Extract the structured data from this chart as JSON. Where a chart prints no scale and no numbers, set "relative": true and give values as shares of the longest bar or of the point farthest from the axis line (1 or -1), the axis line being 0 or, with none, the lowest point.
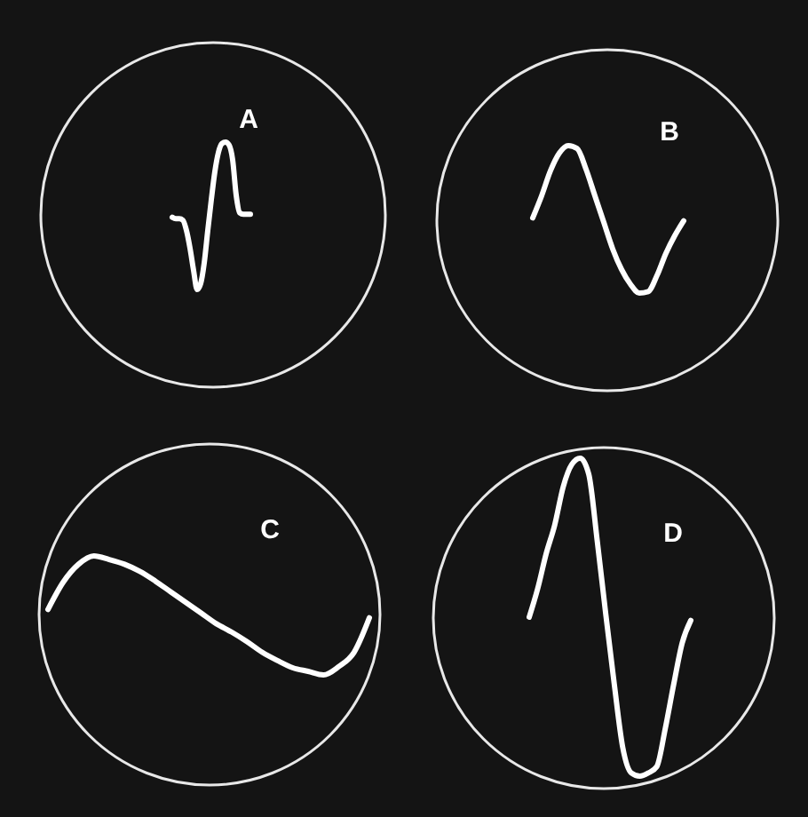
{
  "chart_data": [
    {
      "type": "line",
      "title": "A",
      "relative": true,
      "color": "#ffffff",
      "categories": [
        null,
        null,
        null,
        null,
        null,
        null,
        null,
        null,
        null,
        null,
        null,
        null,
        null,
        null,
        null,
        null,
        null,
        null,
        null,
        null,
        null,
        null,
        null
      ],
      "values": [
        0.49,
        0.48,
        0.48,
        0.47,
        0.4,
        0.28,
        0.13,
        0,
        0.04,
        0.18,
        0.4,
        0.61,
        0.8,
        0.93,
        0.99,
        1,
        0.98,
        0.88,
        0.64,
        0.52,
        0.51,
        0.51,
        0.51
      ]
    },
    {
      "type": "line",
      "title": "B",
      "relative": true,
      "color": "#ffffff",
      "categories": [
        null,
        null,
        null,
        null,
        null,
        null,
        null,
        null,
        null,
        null,
        null,
        null,
        null,
        null,
        null,
        null,
        null,
        null
      ],
      "values": [
        0.51,
        0.66,
        0.83,
        0.95,
        1,
        0.98,
        0.84,
        0.66,
        0.48,
        0.3,
        0.16,
        0.06,
        0,
        0.01,
        0.12,
        0.27,
        0.39,
        0.49
      ]
    },
    {
      "type": "line",
      "title": "C",
      "relative": true,
      "color": "#ffffff",
      "categories": [
        null,
        null,
        null,
        null,
        null,
        null,
        null,
        null,
        null,
        null,
        null,
        null,
        null,
        null,
        null,
        null,
        null,
        null,
        null,
        null,
        null,
        null
      ],
      "values": [
        0.55,
        0.78,
        0.93,
        1,
        0.97,
        0.93,
        0.87,
        0.79,
        0.7,
        0.61,
        0.52,
        0.43,
        0.36,
        0.28,
        0.19,
        0.12,
        0.06,
        0.03,
        0,
        0.07,
        0.19,
        0.48
      ]
    },
    {
      "type": "line",
      "title": "D",
      "relative": true,
      "color": "#ffffff",
      "categories": [
        null,
        null,
        null,
        null,
        null,
        null,
        null,
        null,
        null,
        null,
        null,
        null,
        null,
        null,
        null,
        null,
        null,
        null,
        null,
        null
      ],
      "values": [
        0.5,
        0.59,
        0.7,
        0.79,
        0.91,
        0.98,
        1,
        0.95,
        0.74,
        0.51,
        0.29,
        0.09,
        0.01,
        0,
        0.01,
        0.03,
        0.15,
        0.29,
        0.42,
        0.49
      ]
    }
  ]
}
